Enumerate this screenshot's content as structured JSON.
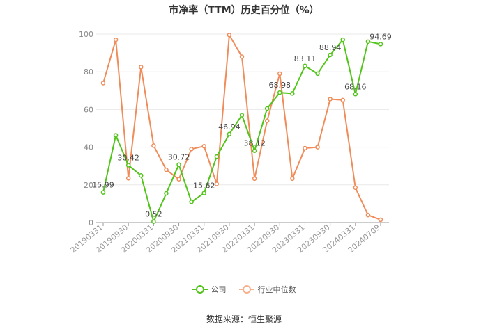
{
  "chart_data": {
    "type": "line",
    "title": "市净率（TTM）历史百分位（%）",
    "xlabel": "",
    "ylabel": "",
    "ylim": [
      0,
      100
    ],
    "yticks": [
      0,
      20,
      40,
      60,
      80,
      100
    ],
    "grid": true,
    "legend_position": "bottom",
    "x_tick_labels": [
      "20190331",
      "20190930",
      "20200331",
      "20200930",
      "20210331",
      "20210930",
      "20220331",
      "20220930",
      "20230331",
      "20230930",
      "20240331",
      "20240709"
    ],
    "x_tick_indices": [
      0,
      2,
      4,
      6,
      8,
      10,
      12,
      14,
      16,
      18,
      20,
      22
    ],
    "series": [
      {
        "name": "公司",
        "color": "#52c41a",
        "values": [
          15.99,
          46.3,
          30.42,
          25.0,
          0.52,
          15.5,
          30.72,
          11.0,
          15.62,
          35.0,
          46.94,
          57.0,
          38.12,
          60.5,
          68.98,
          68.5,
          83.11,
          79.0,
          88.94,
          97.0,
          68.16,
          96.0,
          94.69
        ],
        "data_labels": [
          {
            "index": 0,
            "text": "15.99"
          },
          {
            "index": 2,
            "text": "30.42"
          },
          {
            "index": 4,
            "text": "0.52"
          },
          {
            "index": 6,
            "text": "30.72"
          },
          {
            "index": 8,
            "text": "15.62"
          },
          {
            "index": 10,
            "text": "46.94"
          },
          {
            "index": 12,
            "text": "38.12"
          },
          {
            "index": 14,
            "text": "68.98"
          },
          {
            "index": 16,
            "text": "83.11"
          },
          {
            "index": 18,
            "text": "88.94"
          },
          {
            "index": 20,
            "text": "68.16"
          },
          {
            "index": 22,
            "text": "94.69"
          }
        ]
      },
      {
        "name": "行业中位数",
        "color": "#f08c5a",
        "values": [
          74.0,
          97.0,
          23.5,
          82.5,
          40.8,
          28.0,
          23.0,
          39.0,
          40.5,
          20.5,
          99.5,
          88.0,
          23.3,
          54.0,
          79.0,
          23.3,
          39.5,
          40.0,
          65.5,
          65.0,
          18.5,
          4.0,
          1.5
        ],
        "data_labels": []
      }
    ]
  },
  "source_text": "数据来源：恒生聚源"
}
